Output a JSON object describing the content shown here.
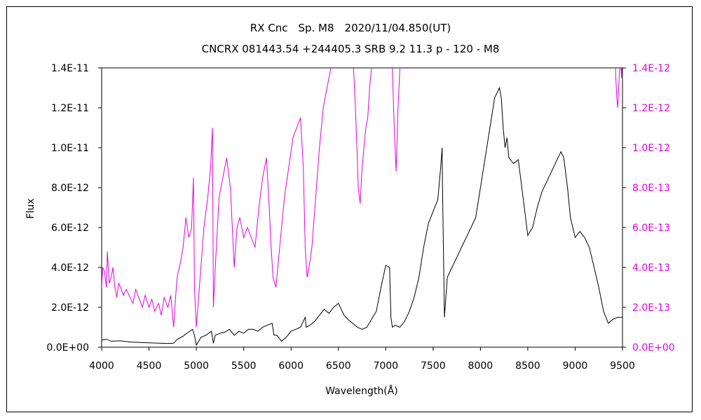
{
  "chart_data": {
    "type": "line",
    "title": "RX Cnc　Sp. M8　2020/11/04.850(UT)",
    "subtitle": "CNCRX 081443.54 +244405.3 SRB 9.2 11.3 p - 120 - M8",
    "xlabel": "Wavelength(Å)",
    "ylabel": "Flux",
    "xlim": [
      4000,
      9500
    ],
    "ylim": [
      0,
      1.4e-11
    ],
    "ylim_right": [
      0,
      1.4e-12
    ],
    "x_ticks": [
      "4000",
      "4500",
      "5000",
      "5500",
      "6000",
      "6500",
      "7000",
      "7500",
      "8000",
      "8500",
      "9000",
      "9500"
    ],
    "y_ticks": [
      "0.0E+00",
      "2.0E-12",
      "4.0E-12",
      "6.0E-12",
      "8.0E-12",
      "1.0E-11",
      "1.2E-11",
      "1.4E-11"
    ],
    "y_ticks_right": [
      "0.0E+00",
      "2.0E-13",
      "4.0E-13",
      "6.0E-13",
      "8.0E-13",
      "1.0E-12",
      "1.2E-12",
      "1.4E-12"
    ],
    "grid": false,
    "colors": {
      "series_black": "#000000",
      "series_magenta": "#e000e0"
    },
    "series": [
      {
        "axis": "left",
        "x": [
          4000,
          4050,
          4100,
          4200,
          4300,
          4400,
          4500,
          4600,
          4700,
          4760,
          4800,
          4860,
          4900,
          4960,
          4980,
          5000,
          5050,
          5100,
          5160,
          5180,
          5200,
          5250,
          5300,
          5350,
          5400,
          5450,
          5500,
          5550,
          5600,
          5650,
          5700,
          5750,
          5800,
          5820,
          5850,
          5900,
          5950,
          6000,
          6050,
          6100,
          6150,
          6160,
          6200,
          6250,
          6300,
          6350,
          6400,
          6450,
          6500,
          6530,
          6560,
          6600,
          6650,
          6700,
          6750,
          6800,
          6850,
          6900,
          6950,
          7000,
          7040,
          7055,
          7070,
          7100,
          7150,
          7200,
          7250,
          7300,
          7350,
          7400,
          7450,
          7500,
          7550,
          7580,
          7595,
          7600,
          7620,
          7650,
          7700,
          7750,
          7800,
          7850,
          7900,
          7950,
          8000,
          8050,
          8100,
          8150,
          8200,
          8220,
          8240,
          8260,
          8280,
          8300,
          8350,
          8400,
          8450,
          8500,
          8550,
          8600,
          8650,
          8700,
          8750,
          8800,
          8850,
          8880,
          8920,
          8950,
          9000,
          9050,
          9100,
          9150,
          9200,
          9250,
          9300,
          9350,
          9400,
          9450,
          9500
        ],
        "y": [
          3.5e-13,
          4e-13,
          3e-13,
          3.2e-13,
          2.6e-13,
          2.4e-13,
          2.2e-13,
          2e-13,
          1.9e-13,
          2e-13,
          4e-13,
          5.5e-13,
          7e-13,
          9e-13,
          6e-13,
          1e-13,
          5e-13,
          6e-13,
          8e-13,
          2e-13,
          6e-13,
          7e-13,
          7.5e-13,
          9e-13,
          6e-13,
          8e-13,
          7e-13,
          9e-13,
          9e-13,
          8e-13,
          1e-12,
          1.1e-12,
          1.2e-12,
          6e-13,
          6e-13,
          3e-13,
          5e-13,
          8e-13,
          9e-13,
          1e-12,
          1.5e-12,
          1e-12,
          1.1e-12,
          1.3e-12,
          1.6e-12,
          1.9e-12,
          1.7e-12,
          2e-12,
          2.2e-12,
          1.9e-12,
          1.6e-12,
          1.4e-12,
          1.2e-12,
          1e-12,
          9e-13,
          1e-12,
          1.4e-12,
          1.8e-12,
          3e-12,
          4.1e-12,
          4e-12,
          1.5e-12,
          1e-12,
          1.1e-12,
          1e-12,
          1.3e-12,
          1.8e-12,
          2.5e-12,
          3.5e-12,
          5e-12,
          6.2e-12,
          6.8e-12,
          7.4e-12,
          9e-12,
          1e-11,
          8e-12,
          1.5e-12,
          3.5e-12,
          4e-12,
          4.5e-12,
          5e-12,
          5.5e-12,
          6e-12,
          6.5e-12,
          8e-12,
          9.5e-12,
          1.1e-11,
          1.25e-11,
          1.3e-11,
          1.25e-11,
          1.1e-11,
          1e-11,
          1.05e-11,
          9.5e-12,
          9.2e-12,
          9.4e-12,
          7.5e-12,
          5.6e-12,
          6e-12,
          7e-12,
          7.8e-12,
          8.3e-12,
          8.8e-12,
          9.3e-12,
          9.8e-12,
          9.5e-12,
          8e-12,
          6.5e-12,
          5.5e-12,
          5.8e-12,
          5.5e-12,
          5e-12,
          4e-12,
          3e-12,
          1.8e-12,
          1.2e-12,
          1.4e-12,
          1.5e-12,
          1.5e-12
        ]
      },
      {
        "axis": "right",
        "x": [
          4000,
          4010,
          4030,
          4050,
          4060,
          4080,
          4100,
          4120,
          4140,
          4160,
          4180,
          4200,
          4230,
          4260,
          4300,
          4330,
          4360,
          4400,
          4430,
          4460,
          4500,
          4530,
          4560,
          4600,
          4630,
          4660,
          4700,
          4730,
          4760,
          4780,
          4800,
          4830,
          4860,
          4890,
          4920,
          4950,
          4970,
          4980,
          5000,
          5040,
          5080,
          5120,
          5150,
          5170,
          5180,
          5200,
          5240,
          5280,
          5320,
          5360,
          5400,
          5430,
          5460,
          5500,
          5540,
          5580,
          5620,
          5660,
          5700,
          5740,
          5770,
          5790,
          5810,
          5840,
          5870,
          5900,
          5930,
          5960,
          5990,
          6020,
          6060,
          6100,
          6130,
          6150,
          6170,
          6190,
          6220,
          6260,
          6300,
          6340,
          6380,
          6420,
          6450,
          6480
        ],
        "y": [
          3e-13,
          4e-13,
          3.8e-13,
          3e-13,
          4.8e-13,
          3.2e-13,
          3.5e-13,
          4e-13,
          3e-13,
          2.5e-13,
          3.2e-13,
          3e-13,
          2.6e-13,
          2.9e-13,
          2.5e-13,
          2.2e-13,
          2.9e-13,
          2.4e-13,
          2e-13,
          2.6e-13,
          2e-13,
          2.4e-13,
          1.8e-13,
          2.2e-13,
          1.6e-13,
          2.5e-13,
          2e-13,
          2.6e-13,
          1e-13,
          2.5e-13,
          3.6e-13,
          4.2e-13,
          5e-13,
          6.5e-13,
          5.5e-13,
          6e-13,
          8.5e-13,
          3e-13,
          1e-13,
          3.5e-13,
          6e-13,
          7.5e-13,
          9e-13,
          1.1e-12,
          2e-13,
          4e-13,
          7.5e-13,
          8.5e-13,
          9.5e-13,
          8e-13,
          4e-13,
          6e-13,
          6.5e-13,
          5.5e-13,
          6e-13,
          5.5e-13,
          5e-13,
          7e-13,
          8.5e-13,
          9.5e-13,
          7e-13,
          5e-13,
          3.5e-13,
          3e-13,
          4.5e-13,
          6e-13,
          7.5e-13,
          8.5e-13,
          9.5e-13,
          1.05e-12,
          1.1e-12,
          1.15e-12,
          9e-13,
          5e-13,
          3.5e-13,
          4e-13,
          5e-13,
          7.5e-13,
          1e-12,
          1.2e-12,
          1.3e-12,
          1.4e-12,
          1.5e-12,
          1.6e-12
        ]
      },
      {
        "axis": "right",
        "x": [
          6650,
          6680,
          6700,
          6710,
          6730,
          6750,
          6770,
          6790,
          6810,
          6830,
          6850,
          6870
        ],
        "y": [
          1.5e-12,
          1.2e-12,
          9.5e-13,
          8e-13,
          7.2e-13,
          9e-13,
          1e-12,
          1.1e-12,
          1.15e-12,
          1.3e-12,
          1.4e-12,
          1.5e-12
        ]
      },
      {
        "axis": "right",
        "x": [
          7050,
          7070,
          7090,
          7110,
          7130,
          7150,
          7170
        ],
        "y": [
          1.5e-12,
          1.4e-12,
          1.1e-12,
          8.8e-13,
          1.2e-12,
          1.4e-12,
          1.5e-12
        ]
      },
      {
        "axis": "right",
        "x": [
          9420,
          9430,
          9440,
          9450,
          9460,
          9470,
          9480,
          9490,
          9500
        ],
        "y": [
          1.5e-12,
          1.35e-12,
          1.25e-12,
          1.2e-12,
          1.3e-12,
          1.4e-12,
          1.45e-12,
          1.35e-12,
          1.5e-12
        ]
      }
    ]
  }
}
